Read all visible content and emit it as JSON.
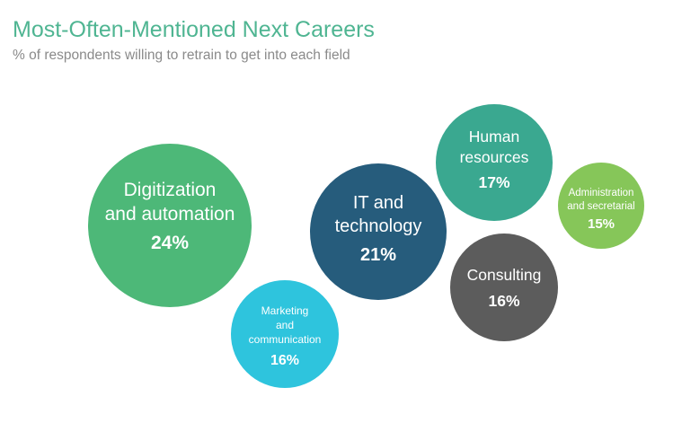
{
  "chart_data": {
    "type": "bubble",
    "title": "Most-Often-Mentioned Next Careers",
    "subtitle": "% of respondents willing to retrain to get into each field",
    "unit": "%",
    "series": [
      {
        "label_lines": [
          "Digitization",
          "and automation"
        ],
        "value": 24,
        "value_label": "24%",
        "color": "#4db878"
      },
      {
        "label_lines": [
          "IT and",
          "technology"
        ],
        "value": 21,
        "value_label": "21%",
        "color": "#265c7c"
      },
      {
        "label_lines": [
          "Human",
          "resources"
        ],
        "value": 17,
        "value_label": "17%",
        "color": "#3aa890"
      },
      {
        "label_lines": [
          "Marketing",
          "and",
          "communication"
        ],
        "value": 16,
        "value_label": "16%",
        "color": "#2ec4dd"
      },
      {
        "label_lines": [
          "Consulting"
        ],
        "value": 16,
        "value_label": "16%",
        "color": "#5c5c5c"
      },
      {
        "label_lines": [
          "Administration",
          "and secretarial"
        ],
        "value": 15,
        "value_label": "15%",
        "color": "#86c659"
      }
    ]
  }
}
